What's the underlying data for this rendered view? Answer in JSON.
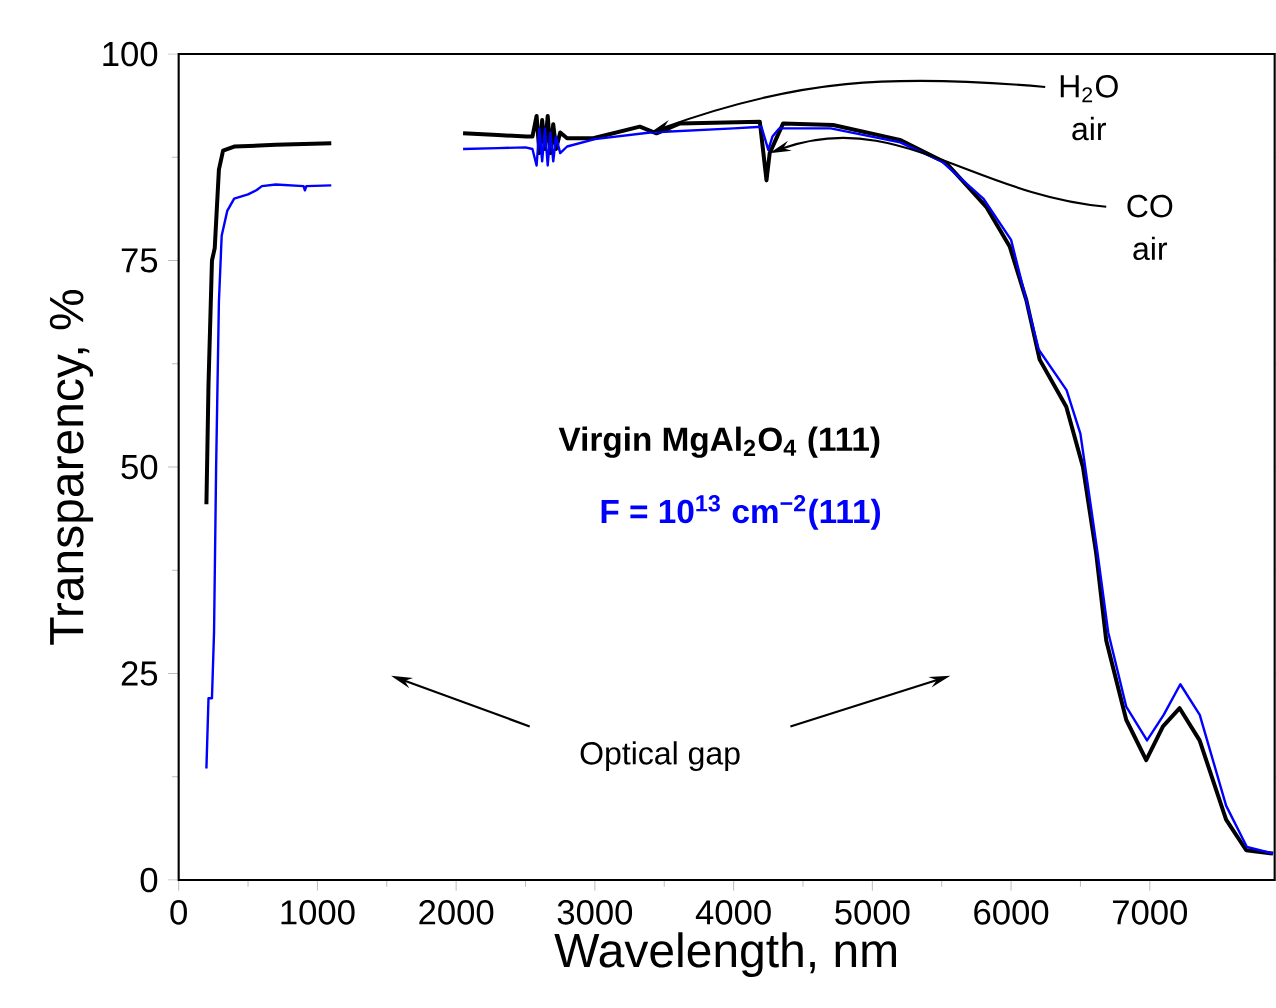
{
  "chart_data": {
    "type": "line",
    "xlabel": "Wavelength, nm",
    "ylabel": "Transparency, %",
    "xlim": [
      0,
      7900
    ],
    "ylim": [
      0,
      100
    ],
    "xticks": [
      0,
      1000,
      2000,
      3000,
      4000,
      5000,
      6000,
      7000
    ],
    "yticks": [
      0,
      25,
      50,
      75,
      100
    ],
    "series": [
      {
        "name": "Virgin MgAl$_{2}$O$_{4}$ (111)",
        "color": "#000000",
        "x": [
          200,
          215,
          240,
          260,
          290,
          320,
          400,
          700,
          1100,
          null,
          2050,
          2300,
          2507,
          2550,
          2580,
          2600,
          2620,
          2640,
          2660,
          2680,
          2700,
          2720,
          2750,
          2800,
          2988,
          3324,
          3444,
          3613,
          4189,
          4237,
          4260,
          4357,
          4717,
          5198,
          5533,
          5821,
          5990,
          6110,
          6206,
          6398,
          6518,
          6614,
          6686,
          6830,
          6974,
          7095,
          7215,
          7359,
          7550,
          7695,
          7888
        ],
        "values": [
          45.5,
          60,
          75,
          76.5,
          86,
          88.3,
          88.8,
          89,
          89.2,
          null,
          90.4,
          90.2,
          90,
          90,
          92.5,
          88,
          92,
          88.5,
          92.5,
          88,
          91.5,
          88.5,
          90.5,
          89.8,
          89.8,
          91.2,
          90.4,
          91.6,
          91.8,
          84.7,
          88,
          91.6,
          91.4,
          89.6,
          86.8,
          81.5,
          76.7,
          70.2,
          63,
          57.3,
          50,
          39.5,
          29,
          19.4,
          14.5,
          18.6,
          20.8,
          16.9,
          7.3,
          3.6,
          3.2
        ]
      },
      {
        "name": "F = 10$^{13}$ cm$^{−2}$(111)",
        "color": "#0000ff",
        "x": [
          200,
          215,
          240,
          255,
          270,
          290,
          310,
          350,
          400,
          500,
          560,
          600,
          700,
          900,
          910,
          920,
          1100,
          null,
          2050,
          2300,
          2500,
          2550,
          2580,
          2600,
          2620,
          2640,
          2660,
          2680,
          2700,
          2720,
          2750,
          2800,
          3000,
          3400,
          4000,
          4200,
          4250,
          4280,
          4330,
          4700,
          5200,
          5500,
          5800,
          6000,
          6200,
          6400,
          6500,
          6620,
          6700,
          6830,
          6980,
          7100,
          7220,
          7360,
          7550,
          7700,
          7890
        ],
        "values": [
          13.5,
          22,
          22,
          30,
          50,
          70,
          78,
          81,
          82.5,
          83,
          83.5,
          84,
          84.2,
          84,
          83.5,
          84,
          84.1,
          null,
          88.5,
          88.6,
          88.7,
          88.5,
          86.5,
          91,
          87,
          91,
          86.5,
          90.5,
          87,
          90,
          88,
          88.8,
          89.7,
          90.5,
          91,
          91.2,
          88.4,
          90,
          91,
          91,
          89.3,
          87,
          82.5,
          77.5,
          64.2,
          59.3,
          54,
          40,
          30,
          21,
          16.9,
          20,
          23.7,
          20,
          9,
          4,
          3.2
        ]
      }
    ],
    "annotations": [
      {
        "text": "H$_{2}$O air",
        "x": 3400,
        "y": 90.5
      },
      {
        "text": "CO air",
        "x": 4260,
        "y": 88
      },
      "Optical gap"
    ],
    "marker": "none",
    "line_style": "solid",
    "grid": false
  }
}
